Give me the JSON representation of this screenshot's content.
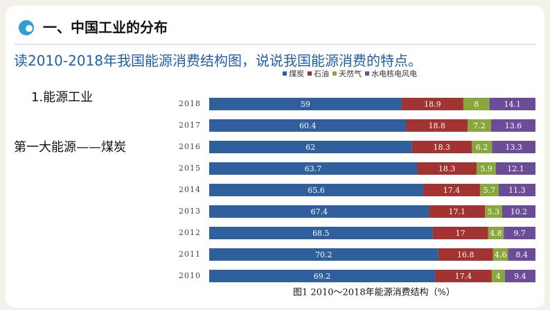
{
  "slide": {
    "header": "一、中国工业的分布",
    "question": "读2010-2018年我国能源消费结构图，说说我国能源消费的特点。",
    "point": "1.能源工业",
    "subpoint": "第一大能源——煤炭"
  },
  "chart_data": {
    "type": "stacked-bar-horizontal",
    "caption": "图1  2010～2018年能源消费结构（%）",
    "categories": [
      "2018",
      "2017",
      "2016",
      "2015",
      "2014",
      "2013",
      "2012",
      "2011",
      "2010"
    ],
    "series": [
      {
        "name": "煤炭",
        "color": "#2f5f9c",
        "values": [
          59,
          60.4,
          62,
          63.7,
          65.6,
          67.4,
          68.5,
          70.2,
          69.2
        ]
      },
      {
        "name": "石油",
        "color": "#a33330",
        "values": [
          18.9,
          18.8,
          18.3,
          18.3,
          17.4,
          17.1,
          17,
          16.8,
          17.4
        ]
      },
      {
        "name": "天然气",
        "color": "#88a83c",
        "values": [
          8,
          7.2,
          6.2,
          5.9,
          5.7,
          5.3,
          4.8,
          4.6,
          4
        ]
      },
      {
        "name": "水电核电风电",
        "color": "#6a4c98",
        "values": [
          14.1,
          13.6,
          13.3,
          12.1,
          11.3,
          10.2,
          9.7,
          8.4,
          9.4
        ]
      }
    ]
  }
}
